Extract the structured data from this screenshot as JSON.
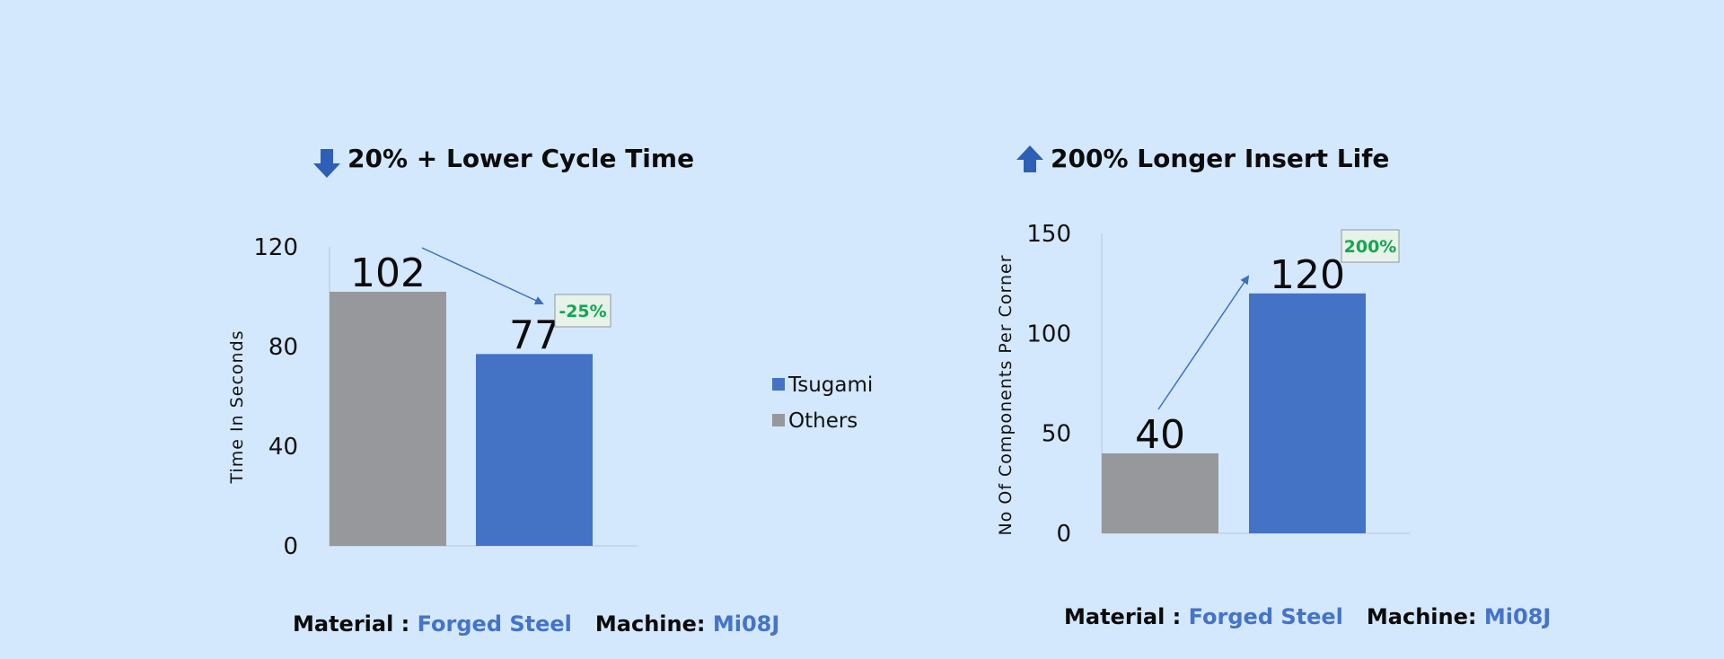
{
  "colors": {
    "background": "#d3e8fd",
    "tsugami": "#4472c4",
    "others": "#97989b",
    "badge_green": "#12a74f",
    "arrow": "#3d6fc0",
    "highlight_text": "#4573c9"
  },
  "legend": {
    "items": [
      {
        "label": "Tsugami",
        "color": "#4472c4"
      },
      {
        "label": "Others",
        "color": "#97989b"
      }
    ]
  },
  "chart_data": [
    {
      "type": "bar",
      "title": "20% + Lower Cycle Time",
      "title_icon": "arrow-down-icon",
      "categories": [
        "Others",
        "Tsugami"
      ],
      "values": [
        102,
        77
      ],
      "data_labels": [
        "102",
        "77"
      ],
      "ylabel": "Time In Seconds",
      "xlabel": "",
      "ylim": [
        0,
        120
      ],
      "yticks": [
        0,
        40,
        80,
        120
      ],
      "ytick_labels": [
        "0",
        "40",
        "80",
        "120"
      ],
      "annotation": {
        "text": "-25%",
        "direction": "down"
      },
      "legend_position": "right",
      "footer": {
        "material_label": "Material :",
        "material_value": "Forged Steel",
        "machine_label": "Machine:",
        "machine_value": "Mi08J"
      }
    },
    {
      "type": "bar",
      "title": "200%  Longer Insert Life",
      "title_icon": "arrow-up-icon",
      "categories": [
        "Others",
        "Tsugami"
      ],
      "values": [
        40,
        120
      ],
      "data_labels": [
        "40",
        "120"
      ],
      "ylabel": "No Of Components Per Corner",
      "xlabel": "",
      "ylim": [
        0,
        150
      ],
      "yticks": [
        0,
        50,
        100,
        150
      ],
      "ytick_labels": [
        "0",
        "50",
        "100",
        "150"
      ],
      "annotation": {
        "text": "200%",
        "direction": "up"
      },
      "footer": {
        "material_label": "Material :",
        "material_value": "Forged Steel",
        "machine_label": "Machine:",
        "machine_value": "Mi08J"
      }
    }
  ]
}
